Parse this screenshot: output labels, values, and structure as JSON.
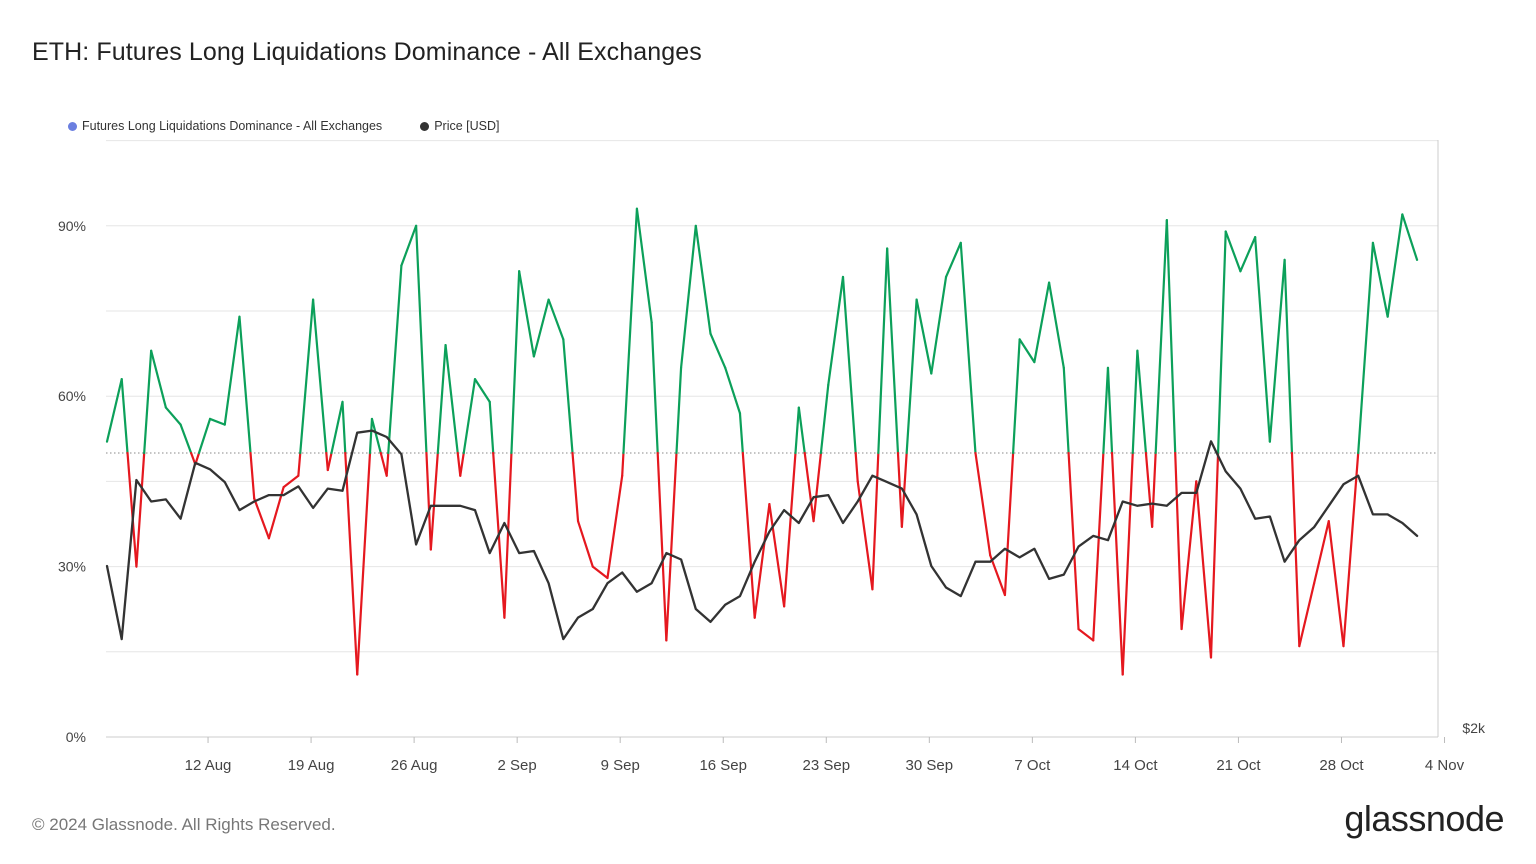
{
  "title": "ETH: Futures Long Liquidations Dominance - All Exchanges",
  "legend": [
    {
      "label": "Futures Long Liquidations Dominance - All Exchanges",
      "color": "#6b7fe0"
    },
    {
      "label": "Price [USD]",
      "color": "#333333"
    }
  ],
  "footer": {
    "copyright": "© 2024 Glassnode. All Rights Reserved.",
    "brand": "glassnode"
  },
  "colors": {
    "above_threshold": "#0ca05a",
    "below_threshold": "#e5181f",
    "price_line": "#333333",
    "gridline": "#e6e6e6",
    "threshold_line": "#888888"
  },
  "chart_data": {
    "type": "line",
    "title": "ETH: Futures Long Liquidations Dominance - All Exchanges",
    "x_axis": {
      "type": "date",
      "tick_labels": [
        "12 Aug",
        "19 Aug",
        "26 Aug",
        "2 Sep",
        "9 Sep",
        "16 Sep",
        "23 Sep",
        "30 Sep",
        "7 Oct",
        "14 Oct",
        "21 Oct",
        "28 Oct",
        "4 Nov"
      ],
      "range": [
        "2024-08-05",
        "2024-11-04"
      ]
    },
    "y_axis_left": {
      "tick_labels": [
        "0%",
        "30%",
        "60%",
        "90%"
      ],
      "ticks": [
        0,
        30,
        60,
        90
      ],
      "range": [
        0,
        105
      ],
      "unit": "%"
    },
    "y_axis_right": {
      "tick_labels": [
        "$2k"
      ],
      "ticks": [
        2000
      ]
    },
    "threshold": 50,
    "grid": true,
    "legend_position": "top-left",
    "series": [
      {
        "name": "Futures Long Liquidations Dominance - All Exchanges",
        "axis": "left",
        "coloring": "green above 50%, red below 50%",
        "values": [
          52,
          63,
          30,
          68,
          58,
          55,
          48,
          56,
          55,
          74,
          42,
          35,
          44,
          46,
          77,
          47,
          59,
          11,
          56,
          46,
          83,
          90,
          33,
          69,
          46,
          63,
          59,
          21,
          82,
          67,
          77,
          70,
          38,
          30,
          28,
          46,
          93,
          73,
          17,
          65,
          90,
          71,
          65,
          57,
          21,
          41,
          23,
          58,
          38,
          62,
          81,
          45,
          26,
          86,
          37,
          77,
          64,
          81,
          87,
          50,
          32,
          25,
          70,
          66,
          80,
          65,
          19,
          17,
          65,
          11,
          68,
          37,
          91,
          19,
          45,
          14,
          89,
          82,
          88,
          52,
          84,
          16,
          27,
          38,
          16,
          50,
          87,
          74,
          92,
          84
        ]
      },
      {
        "name": "Price [USD]",
        "axis": "right",
        "values": [
          2550,
          2380,
          2750,
          2700,
          2705,
          2660,
          2790,
          2775,
          2745,
          2680,
          2700,
          2715,
          2715,
          2735,
          2685,
          2730,
          2725,
          2860,
          2865,
          2850,
          2810,
          2600,
          2690,
          2690,
          2690,
          2680,
          2580,
          2650,
          2580,
          2585,
          2510,
          2380,
          2430,
          2450,
          2510,
          2535,
          2490,
          2510,
          2580,
          2565,
          2450,
          2420,
          2460,
          2480,
          2560,
          2630,
          2680,
          2650,
          2710,
          2715,
          2650,
          2700,
          2760,
          2745,
          2730,
          2670,
          2550,
          2500,
          2480,
          2560,
          2560,
          2590,
          2570,
          2590,
          2520,
          2530,
          2595,
          2620,
          2610,
          2700,
          2690,
          2695,
          2690,
          2720,
          2720,
          2840,
          2770,
          2730,
          2660,
          2665,
          2560,
          2610,
          2640,
          2690,
          2740,
          2760,
          2670,
          2670,
          2650,
          2620
        ]
      }
    ]
  }
}
